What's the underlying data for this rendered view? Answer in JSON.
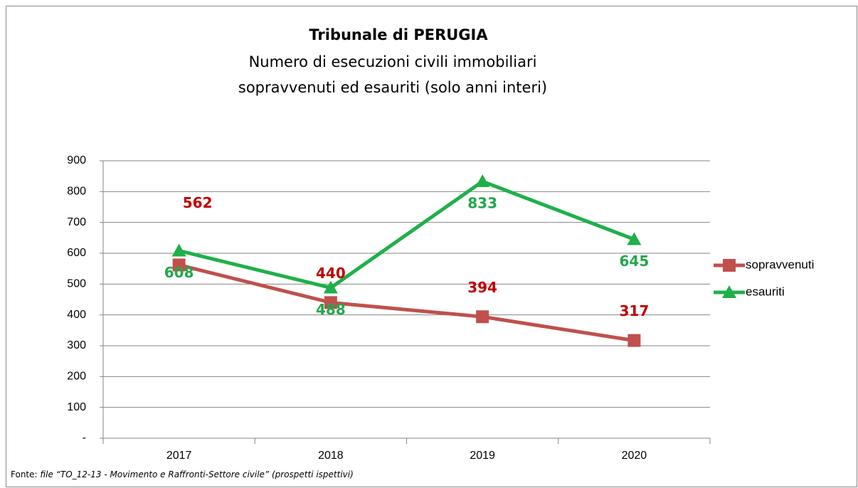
{
  "chart_data": {
    "type": "line",
    "title": "Tribunale di PERUGIA",
    "subtitle": [
      "Numero di esecuzioni civili immobiliari",
      "sopravvenuti ed esauriti (solo anni interi)"
    ],
    "categories": [
      "2017",
      "2018",
      "2019",
      "2020"
    ],
    "series": [
      {
        "name": "sopravvenuti",
        "color": "#c0504d",
        "label_color": "#c00000",
        "marker": "square",
        "values": [
          562,
          440,
          394,
          317
        ]
      },
      {
        "name": "esauriti",
        "color": "#1fb04a",
        "label_color": "#22a84a",
        "marker": "triangle",
        "values": [
          608,
          488,
          833,
          645
        ]
      }
    ],
    "ylim": [
      0,
      900
    ],
    "yticks": [
      {
        "value": 0,
        "label": "-"
      },
      100,
      200,
      300,
      400,
      500,
      600,
      700,
      800,
      900
    ],
    "grid": true,
    "legend": "right",
    "source_label": "Fonte:",
    "source_text": "file “TO_12-13 - Movimento e Raffronti-Settore civile” (prospetti ispettivi)"
  }
}
